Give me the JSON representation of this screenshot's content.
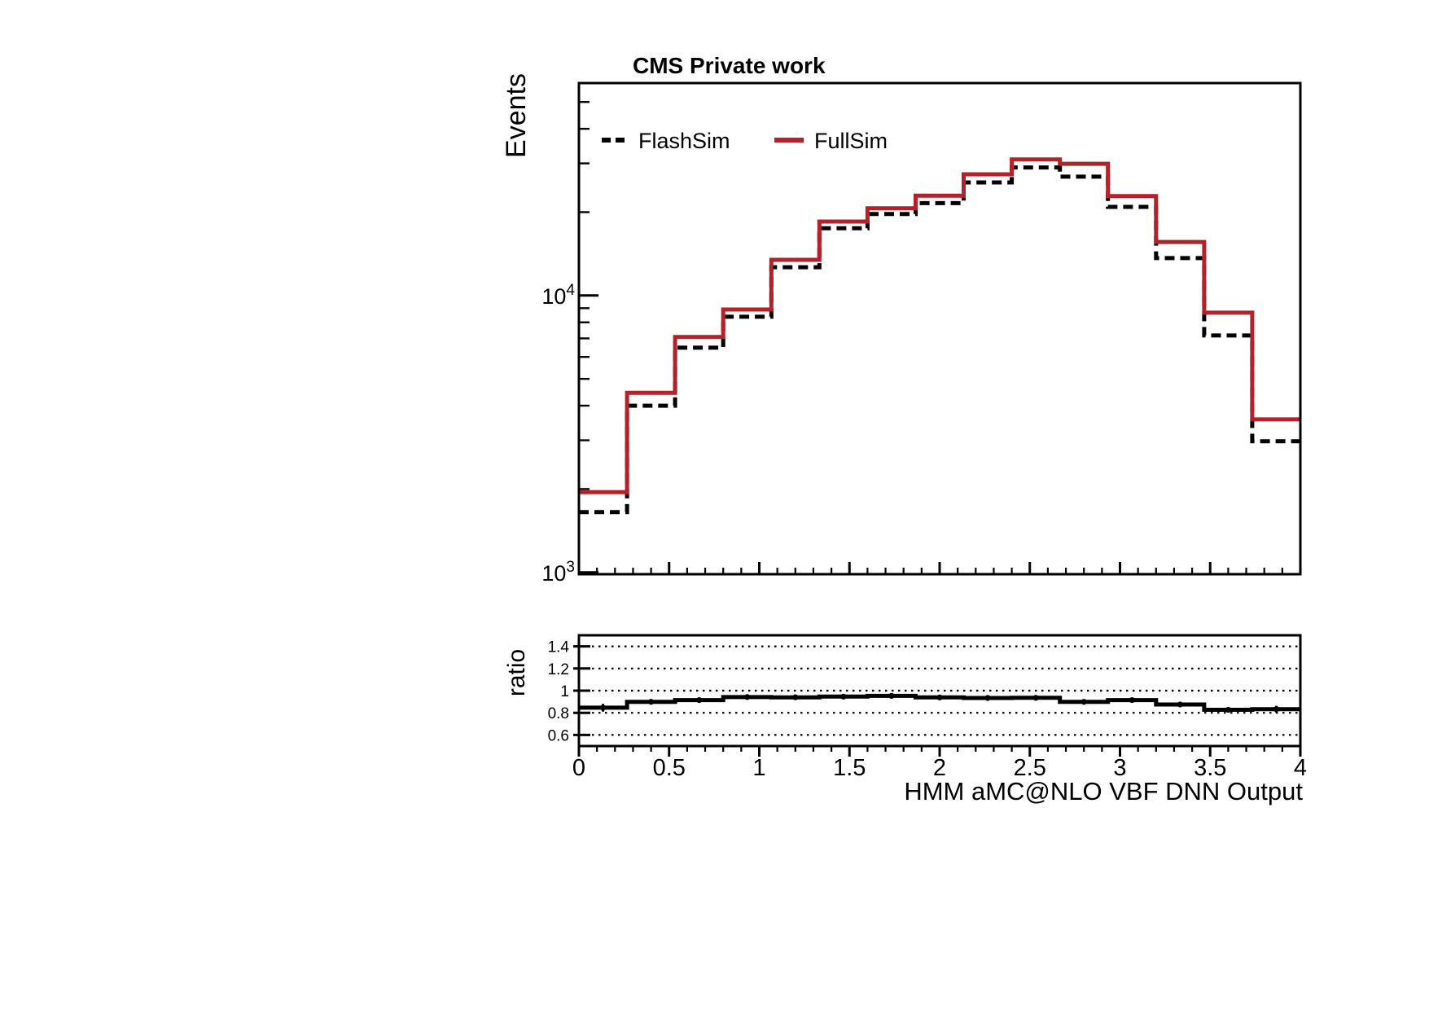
{
  "chart_data": [
    {
      "type": "step-histogram",
      "title": "CMS Private work",
      "ylabel": "Events",
      "yscale": "log",
      "ylim": [
        985,
        58500
      ],
      "xlim": [
        0,
        4
      ],
      "n_bins": 15,
      "bin_width": 0.2667,
      "grid": false,
      "legend_position": "top-left-inside",
      "ytick_major": [
        {
          "value": 1000,
          "base": "10",
          "exp": "3"
        },
        {
          "value": 10000,
          "base": "10",
          "exp": "4"
        }
      ],
      "ytick_minor": [
        2000,
        3000,
        4000,
        5000,
        6000,
        7000,
        8000,
        9000,
        20000,
        30000,
        40000,
        50000
      ],
      "xtick_major_step": 0.5,
      "xtick_minor_step": 0.1,
      "series": [
        {
          "name": "FlashSim",
          "color": "#000000",
          "line_style": "dashed",
          "values": [
            1650,
            4000,
            6480,
            8380,
            12650,
            17500,
            19680,
            21550,
            25600,
            29000,
            26870,
            20900,
            13650,
            7170,
            2975
          ]
        },
        {
          "name": "FullSim",
          "color": "#b2222a",
          "line_style": "solid",
          "values": [
            1950,
            4450,
            7080,
            8900,
            13450,
            18500,
            20650,
            22950,
            27400,
            31000,
            29900,
            22850,
            15600,
            8670,
            3570
          ]
        }
      ]
    },
    {
      "type": "step-line",
      "ylabel": "ratio",
      "xlabel": "HMM aMC@NLO VBF DNN Output",
      "ylim": [
        0.5,
        1.5
      ],
      "xlim": [
        0,
        4
      ],
      "color": "#000000",
      "marker": "circle",
      "grid_values": [
        0.6,
        0.8,
        1.0,
        1.2,
        1.4
      ],
      "ytick_labels": [
        "0.6",
        "0.8",
        "1",
        "1.2",
        "1.4"
      ],
      "xtick_labels": [
        {
          "label": "0",
          "value": 0
        },
        {
          "label": "0.5",
          "value": 0.5
        },
        {
          "label": "1",
          "value": 1
        },
        {
          "label": "1.5",
          "value": 1.5
        },
        {
          "label": "2",
          "value": 2
        },
        {
          "label": "2.5",
          "value": 2.5
        },
        {
          "label": "3",
          "value": 3
        },
        {
          "label": "3.5",
          "value": 3.5
        },
        {
          "label": "4",
          "value": 4
        }
      ],
      "values": [
        0.846,
        0.899,
        0.915,
        0.942,
        0.94,
        0.946,
        0.953,
        0.939,
        0.934,
        0.935,
        0.899,
        0.915,
        0.875,
        0.827,
        0.833
      ],
      "errors": [
        0.035,
        0.02,
        0.015,
        0.012,
        0.01,
        0.009,
        0.009,
        0.009,
        0.008,
        0.008,
        0.009,
        0.01,
        0.013,
        0.017,
        0.03
      ]
    }
  ]
}
